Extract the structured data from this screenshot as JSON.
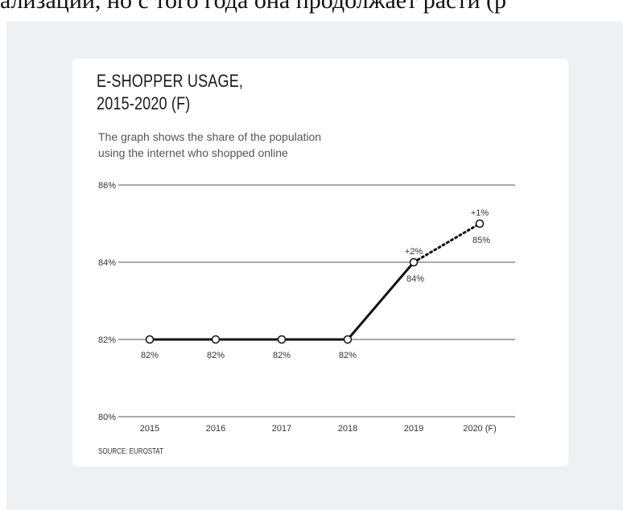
{
  "page": {
    "top_text": "ализации, но с того года она продолжает расти (р"
  },
  "card": {
    "title_line1": "E-SHOPPER USAGE,",
    "title_line2": "2015-2020 (F)",
    "subtitle_line1": "The graph shows the share of the population",
    "subtitle_line2": "using the internet who shopped online",
    "source": "SOURCE: EUROSTAT"
  },
  "chart_data": {
    "type": "line",
    "title": "E-SHOPPER USAGE, 2015-2020 (F)",
    "subtitle": "The graph shows the share of the population using the internet who shopped online",
    "categories": [
      "2015",
      "2016",
      "2017",
      "2018",
      "2019",
      "2020 (F)"
    ],
    "values": [
      82,
      82,
      82,
      82,
      84,
      85
    ],
    "value_labels": [
      "82%",
      "82%",
      "82%",
      "82%",
      "84%",
      "85%"
    ],
    "change_labels": [
      "",
      "",
      "",
      "",
      "+2%",
      "+1%"
    ],
    "forecast_from_index": 4,
    "ylim": [
      80,
      86
    ],
    "yticks": [
      80,
      82,
      84,
      86
    ],
    "ytick_labels": [
      "80%",
      "82%",
      "84%",
      "86%"
    ],
    "grid": true,
    "colors": {
      "line": "#111111",
      "grid": "#555555",
      "marker_fill": "#ffffff"
    }
  }
}
